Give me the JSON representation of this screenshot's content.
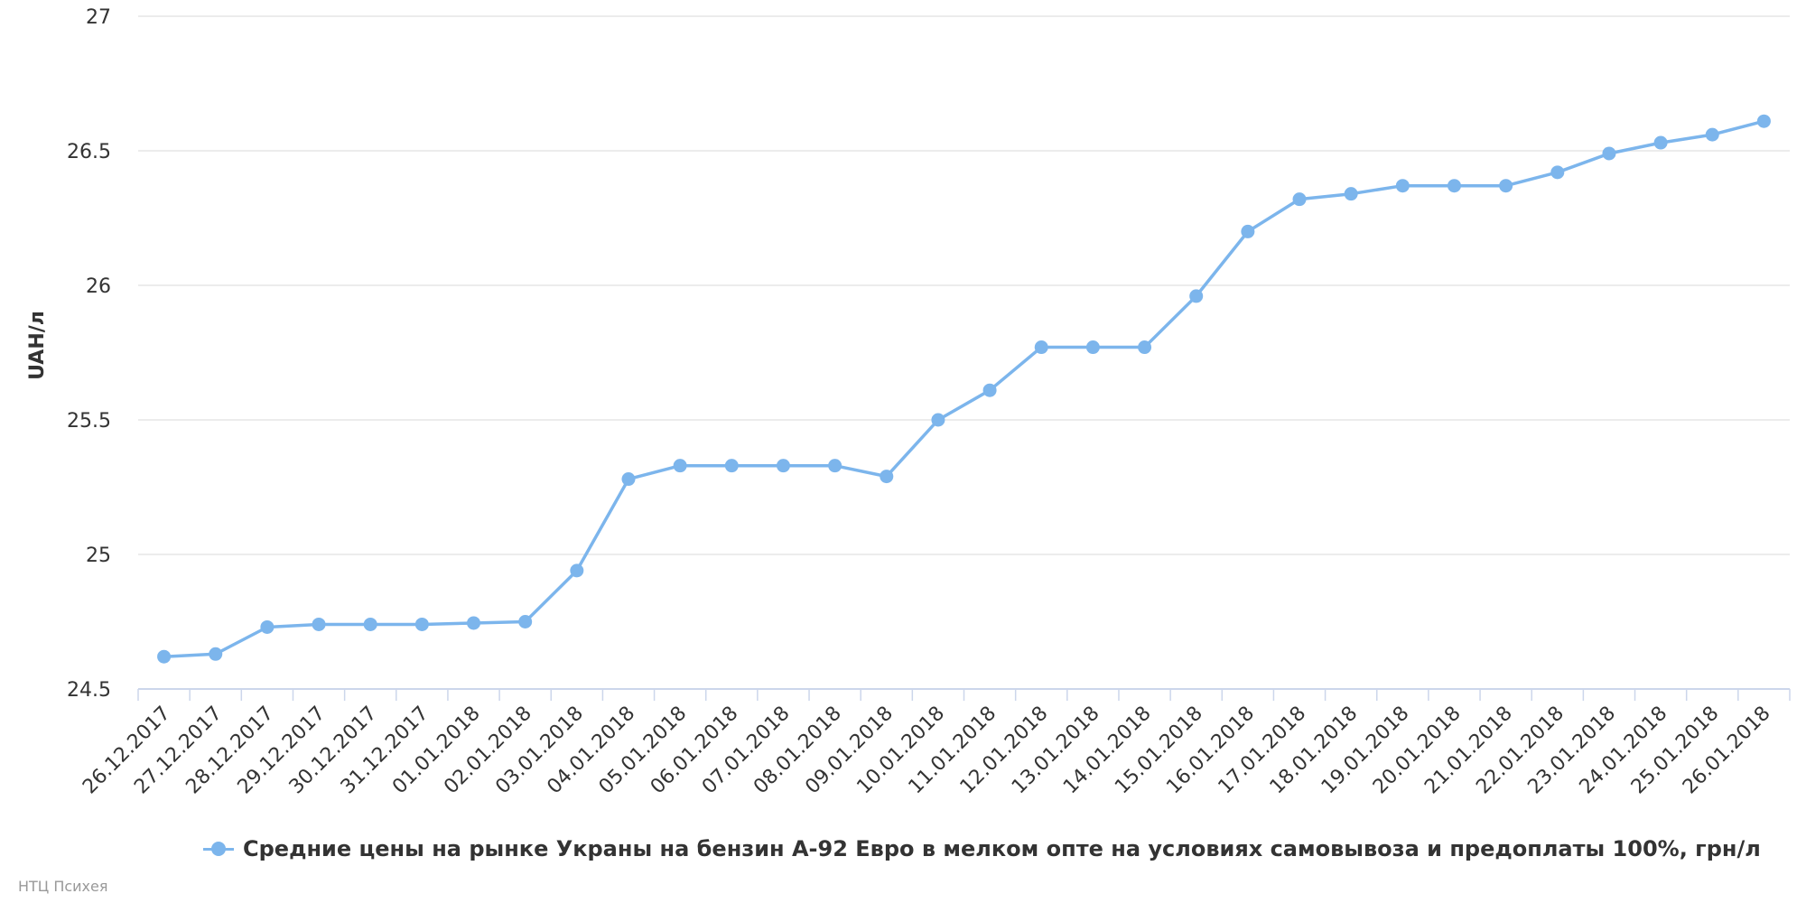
{
  "chart_data": {
    "type": "line",
    "ylabel": "UAH/л",
    "ylim": [
      24.5,
      27
    ],
    "y_ticks": [
      "27",
      "26.5",
      "26",
      "25.5",
      "25",
      "24.5"
    ],
    "grid": true,
    "legend_position": "bottom",
    "categories": [
      "26.12.2017",
      "27.12.2017",
      "28.12.2017",
      "29.12.2017",
      "30.12.2017",
      "31.12.2017",
      "01.01.2018",
      "02.01.2018",
      "03.01.2018",
      "04.01.2018",
      "05.01.2018",
      "06.01.2018",
      "07.01.2018",
      "08.01.2018",
      "09.01.2018",
      "10.01.2018",
      "11.01.2018",
      "12.01.2018",
      "13.01.2018",
      "14.01.2018",
      "15.01.2018",
      "16.01.2018",
      "17.01.2018",
      "18.01.2018",
      "19.01.2018",
      "20.01.2018",
      "21.01.2018",
      "22.01.2018",
      "23.01.2018",
      "24.01.2018",
      "25.01.2018",
      "26.01.2018"
    ],
    "series": [
      {
        "name": "Средние цены на рынке Украны на бензин А-92 Евро в мелком опте на условиях самовывоза и предоплаты 100%, грн/л",
        "color": "#7cb5ec",
        "values": [
          24.62,
          24.63,
          24.73,
          24.74,
          24.74,
          24.74,
          24.745,
          24.75,
          24.94,
          25.28,
          25.33,
          25.33,
          25.33,
          25.33,
          25.29,
          25.5,
          25.61,
          25.77,
          25.77,
          25.77,
          25.96,
          26.2,
          26.32,
          26.34,
          26.37,
          26.37,
          26.37,
          26.42,
          26.49,
          26.53,
          26.56,
          26.61
        ]
      }
    ]
  },
  "credits": "НТЦ Психея"
}
